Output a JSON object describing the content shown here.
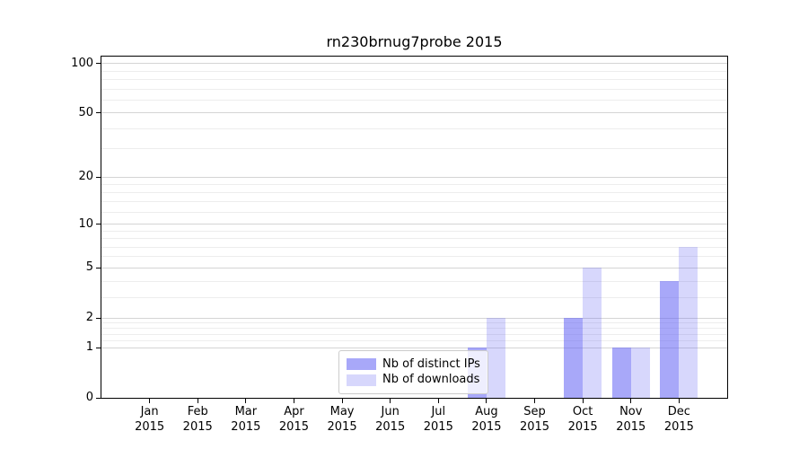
{
  "title": "rn230brnug7probe 2015",
  "chart_data": {
    "type": "bar",
    "title": "rn230brnug7probe 2015",
    "categories": [
      "Jan",
      "Feb",
      "Mar",
      "Apr",
      "May",
      "Jun",
      "Jul",
      "Aug",
      "Sep",
      "Oct",
      "Nov",
      "Dec"
    ],
    "x_year": "2015",
    "series": [
      {
        "name": "Nb of distinct IPs",
        "color": "rgba(102,102,245,0.57)",
        "values": [
          0,
          0,
          0,
          0,
          0,
          0,
          0,
          1,
          0,
          2,
          1,
          4
        ]
      },
      {
        "name": "Nb of downloads",
        "color": "rgba(102,102,245,0.26)",
        "values": [
          0,
          0,
          0,
          0,
          0,
          0,
          0,
          2,
          0,
          5,
          1,
          7
        ]
      }
    ],
    "xlabel": "",
    "ylabel": "",
    "yscale": "log1p",
    "ylim": [
      0,
      110
    ],
    "ylim_top": 110,
    "y_major_ticks": [
      0,
      1,
      2,
      5,
      10,
      20,
      50,
      100
    ],
    "y_minor_ticks": [
      1.2,
      1.4,
      1.6,
      1.8,
      3,
      4,
      6,
      7,
      8,
      9,
      12,
      14,
      16,
      18,
      30,
      40,
      60,
      70,
      80,
      90
    ],
    "grid": true,
    "legend_position": "lower center"
  },
  "colors": {
    "grid_major": "#d4d4d4",
    "grid_minor": "#ededed",
    "axis": "#000000",
    "legend_border": "#cccccc",
    "background": "#ffffff"
  }
}
